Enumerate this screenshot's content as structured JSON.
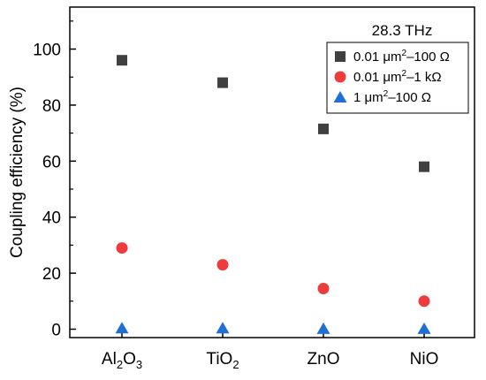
{
  "chart_data": {
    "type": "scatter",
    "title": "",
    "xlabel": "",
    "ylabel": "Coupling efficiency (%)",
    "categories": [
      {
        "base": "Al",
        "sub": "2",
        "base2": "O",
        "sub2": "3"
      },
      {
        "base": "TiO",
        "sub": "2",
        "base2": "",
        "sub2": ""
      },
      {
        "base": "ZnO",
        "sub": "",
        "base2": "",
        "sub2": ""
      },
      {
        "base": "NiO",
        "sub": "",
        "base2": "",
        "sub2": ""
      }
    ],
    "ylim": [
      -3,
      115
    ],
    "yticks": [
      0,
      20,
      40,
      60,
      80,
      100
    ],
    "grid": false,
    "legend": {
      "title": "28.3 THz",
      "placement": "top-right"
    },
    "series": [
      {
        "name": "0.01 μm²–100 Ω",
        "label_parts": {
          "pre": "0.01 μm",
          "sup": "2",
          "post": "–100 Ω"
        },
        "marker": "square",
        "color": "#404040",
        "values": [
          96,
          88,
          71.5,
          58
        ]
      },
      {
        "name": "0.01 μm²–1 kΩ",
        "label_parts": {
          "pre": "0.01 μm",
          "sup": "2",
          "post": "–1 kΩ"
        },
        "marker": "circle",
        "color": "#ee3b3b",
        "values": [
          29,
          23,
          14.5,
          10
        ]
      },
      {
        "name": "1 μm²–100 Ω",
        "label_parts": {
          "pre": "1 μm",
          "sup": "2",
          "post": "–100 Ω"
        },
        "marker": "triangle",
        "color": "#1f6fd6",
        "values": [
          0.4,
          0.4,
          0.2,
          0.2
        ]
      }
    ]
  }
}
